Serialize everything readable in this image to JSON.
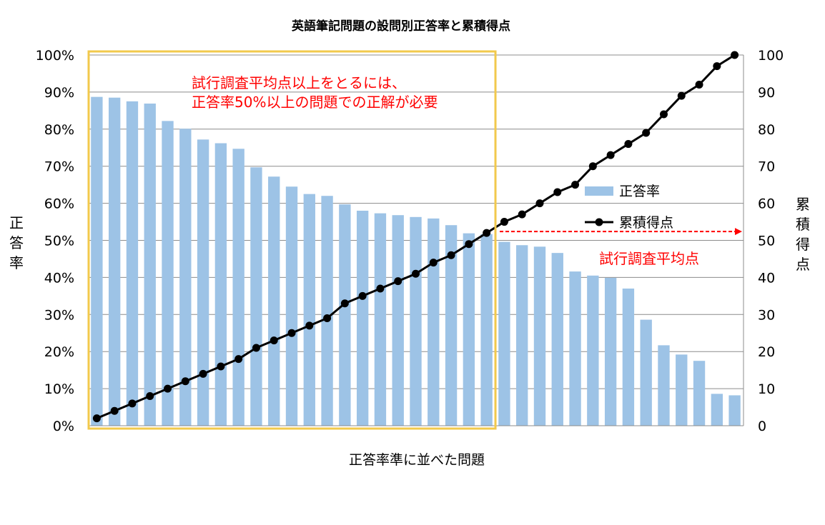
{
  "chart_data": {
    "type": "bar",
    "title": "英語筆記問題の設問別正答率と累積得点",
    "xlabel": "正答率準に並べた問題",
    "ylabel_left": "正答率",
    "ylabel_right": "累積得点",
    "y_left_range": [
      0,
      100
    ],
    "y_left_ticks": [
      "0%",
      "10%",
      "20%",
      "30%",
      "40%",
      "50%",
      "60%",
      "70%",
      "80%",
      "90%",
      "100%"
    ],
    "y_right_range": [
      0,
      100
    ],
    "y_right_ticks": [
      "0",
      "10",
      "20",
      "30",
      "40",
      "50",
      "60",
      "70",
      "80",
      "90",
      "100"
    ],
    "grid": true,
    "legend_position": "right",
    "series": [
      {
        "name": "正答率",
        "type": "bar",
        "axis": "left",
        "color": "#9dc3e6",
        "values": [
          88.7,
          88.5,
          87.5,
          86.9,
          82.2,
          80.1,
          77.2,
          76.2,
          74.7,
          69.7,
          67.2,
          64.5,
          62.5,
          62.0,
          59.7,
          58.0,
          57.3,
          56.8,
          56.3,
          55.9,
          54.1,
          51.9,
          51.7,
          49.6,
          48.7,
          48.3,
          46.6,
          41.6,
          40.5,
          39.9,
          37.0,
          28.6,
          21.7,
          19.2,
          17.5,
          8.6,
          8.2
        ]
      },
      {
        "name": "累積得点",
        "type": "line",
        "axis": "right",
        "color": "#000000",
        "values": [
          2,
          4,
          6,
          8,
          10,
          12,
          14,
          16,
          18,
          21,
          23,
          25,
          27,
          29,
          33,
          35,
          37,
          39,
          41,
          44,
          46,
          49,
          52,
          55,
          57,
          60,
          63,
          65,
          70,
          73,
          76,
          79,
          84,
          89,
          92,
          97,
          100
        ]
      }
    ],
    "annotations": {
      "box_note_line1": "試行調査平均点以上をとるには、",
      "box_note_line2": "正答率50%以上の問題での正解が必要",
      "average_label": "試行調査平均点",
      "average_value": 52,
      "highlight_bar_count": 23,
      "highlight_color": "#f2c94c",
      "annotation_color": "#ff0000"
    }
  }
}
